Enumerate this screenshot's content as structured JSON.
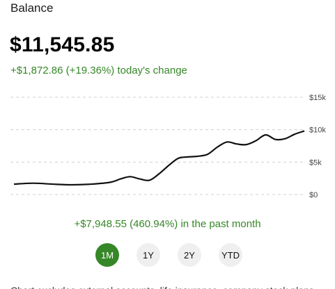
{
  "header": {
    "title": "Balance"
  },
  "balance": {
    "amount": "$11,545.85"
  },
  "today_change": {
    "text": "+$1,872.86 (+19.36%) today's change"
  },
  "colors": {
    "positive": "#368727",
    "line": "#111111",
    "grid": "#cfcfcf",
    "active_range_bg": "#368727",
    "range_bg": "#efefef"
  },
  "chart_data": {
    "type": "line",
    "ylim": [
      0,
      15000
    ],
    "yticks": [
      "$0",
      "$5k",
      "$10k",
      "$15k"
    ],
    "ytick_values": [
      0,
      5000,
      10000,
      15000
    ],
    "grid": true,
    "x": [
      0,
      2,
      4,
      6,
      8,
      10,
      11,
      12,
      13,
      14,
      15,
      16,
      17,
      18,
      19,
      20,
      21,
      22,
      23,
      24,
      25,
      26,
      27,
      28,
      29,
      30
    ],
    "values": [
      1600,
      1750,
      1600,
      1500,
      1600,
      1900,
      2400,
      2750,
      2400,
      2200,
      3200,
      4500,
      5600,
      5800,
      5900,
      6200,
      7300,
      8100,
      7800,
      7700,
      8300,
      9200,
      8500,
      8600,
      9300,
      9800
    ]
  },
  "period_change": {
    "text": "+$7,948.55 (460.94%) in the past month"
  },
  "ranges": [
    {
      "label": "1M",
      "active": true
    },
    {
      "label": "1Y",
      "active": false
    },
    {
      "label": "2Y",
      "active": false
    },
    {
      "label": "YTD",
      "active": false
    }
  ],
  "footer": {
    "text": "Chart excludes external accounts, life insurance, company stock plans"
  }
}
